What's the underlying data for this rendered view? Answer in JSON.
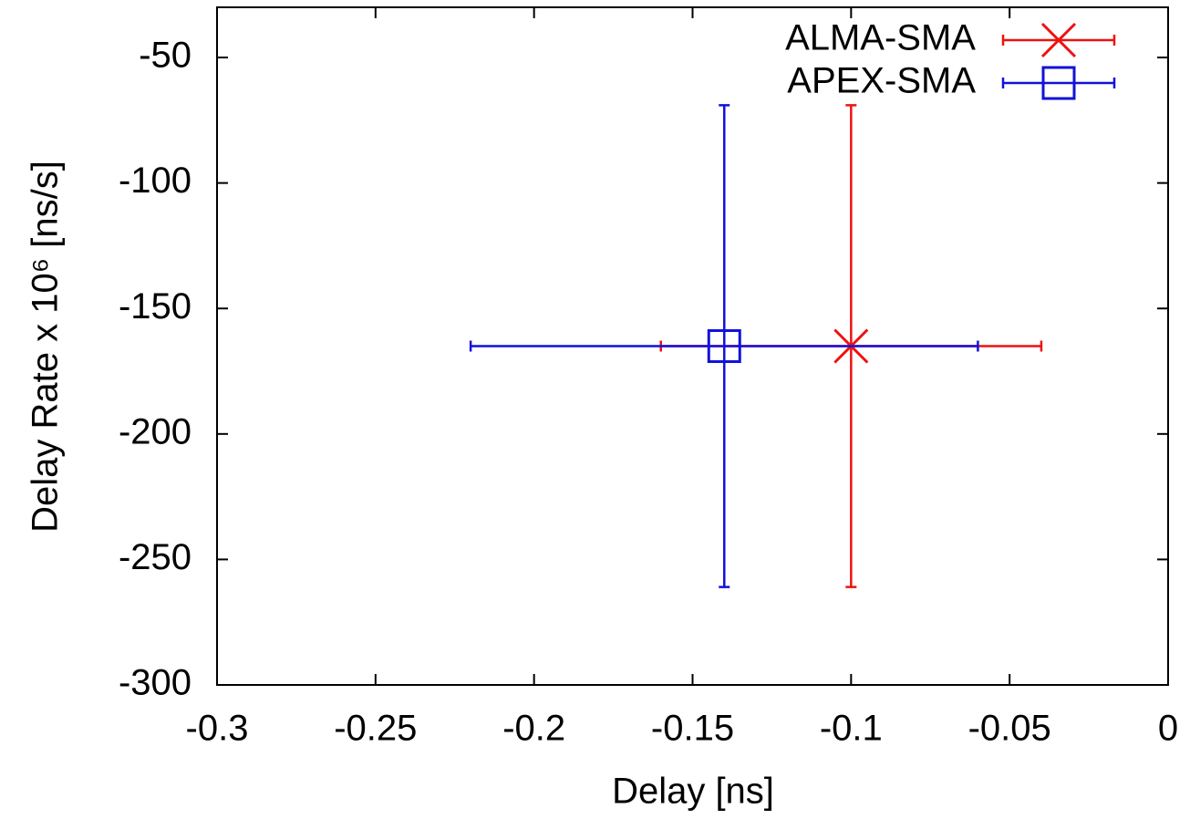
{
  "chart_data": {
    "type": "errorbar",
    "xlabel": "Delay [ns]",
    "ylabel": "Delay Rate x 10⁶  [ns/s]",
    "xlim": [
      -0.3,
      0
    ],
    "xticks": [
      -0.3,
      -0.25,
      -0.2,
      -0.15,
      -0.1,
      -0.05,
      0
    ],
    "ylim": [
      -300,
      -30
    ],
    "yticks": [
      -300,
      -250,
      -200,
      -150,
      -100,
      -50
    ],
    "legend": "top-right",
    "series": [
      {
        "name": "ALMA-SMA",
        "color": "#ee1111",
        "marker": "x",
        "x": [
          -0.1
        ],
        "y": [
          -165
        ],
        "xerr": [
          0.06
        ],
        "yerr": [
          96
        ]
      },
      {
        "name": "APEX-SMA",
        "color": "#1111dd",
        "marker": "square",
        "x": [
          -0.14
        ],
        "y": [
          -165
        ],
        "xerr": [
          0.08
        ],
        "yerr": [
          96
        ]
      }
    ]
  }
}
